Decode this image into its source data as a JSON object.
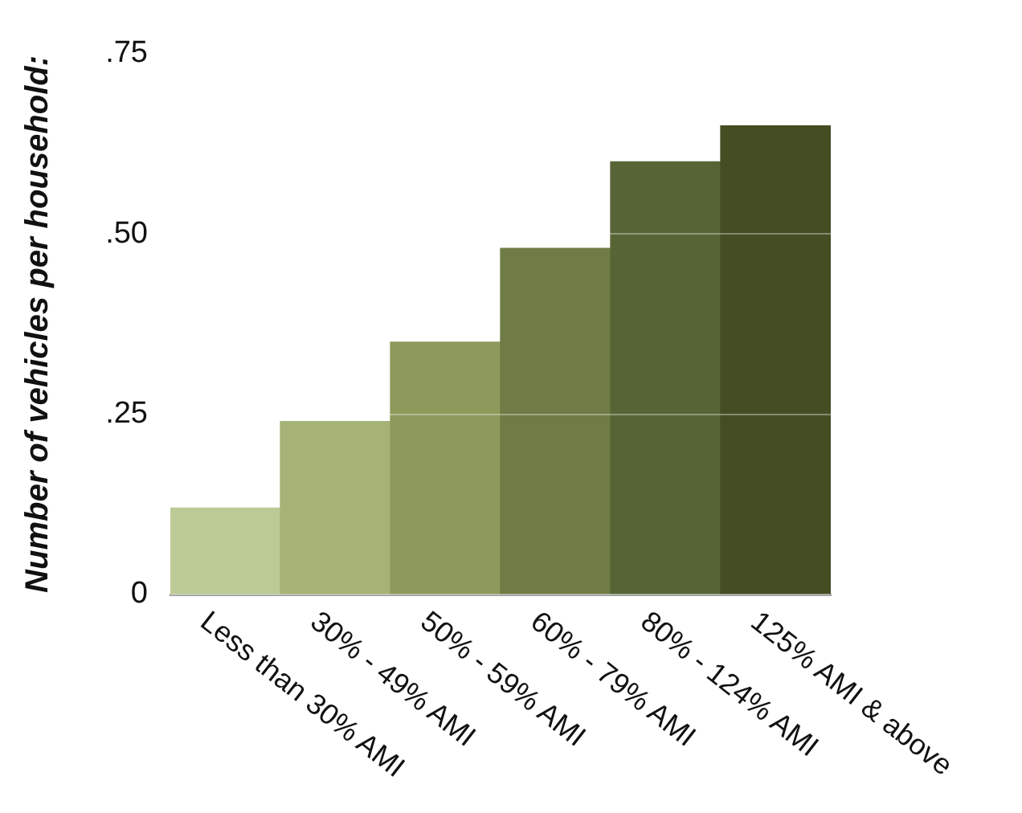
{
  "chart_data": {
    "type": "bar",
    "ylabel": "Number of vehicles per household:",
    "categories": [
      "Less than 30% AMI",
      "30% - 49% AMI",
      "50% - 59% AMI",
      "60% - 79% AMI",
      "80% - 124% AMI",
      "125% AMI & above"
    ],
    "values": [
      0.12,
      0.24,
      0.35,
      0.48,
      0.6,
      0.65
    ],
    "colors": [
      "#bccb95",
      "#a6b376",
      "#8c9a5c",
      "#6f7c46",
      "#576536",
      "#434e23"
    ],
    "ylim": [
      0,
      0.75
    ],
    "yticks": [
      {
        "value": 0,
        "label": "0"
      },
      {
        "value": 0.25,
        "label": ".25"
      },
      {
        "value": 0.5,
        "label": ".50"
      },
      {
        "value": 0.75,
        "label": ".75"
      }
    ],
    "grid": "y",
    "legend": false
  }
}
